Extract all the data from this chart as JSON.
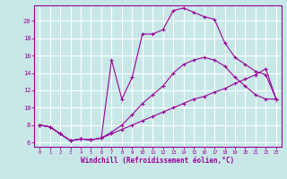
{
  "xlabel": "Windchill (Refroidissement éolien,°C)",
  "bg_color": "#c8e8e8",
  "grid_color": "#ffffff",
  "line_color": "#990099",
  "xlim": [
    -0.5,
    23.5
  ],
  "ylim": [
    5.5,
    21.8
  ],
  "yticks": [
    6,
    8,
    10,
    12,
    14,
    16,
    18,
    20
  ],
  "xticks": [
    0,
    1,
    2,
    3,
    4,
    5,
    6,
    7,
    8,
    9,
    10,
    11,
    12,
    13,
    14,
    15,
    16,
    17,
    18,
    19,
    20,
    21,
    22,
    23
  ],
  "line1_x": [
    0,
    1,
    2,
    3,
    4,
    5,
    6,
    7,
    8,
    9,
    10,
    11,
    12,
    13,
    14,
    15,
    16,
    17,
    18,
    19,
    20,
    21,
    22,
    23
  ],
  "line1_y": [
    8.0,
    7.8,
    7.0,
    6.2,
    6.4,
    6.3,
    6.5,
    7.0,
    7.5,
    8.0,
    8.5,
    9.0,
    9.5,
    10.0,
    10.5,
    11.0,
    11.3,
    11.8,
    12.2,
    12.8,
    13.3,
    13.8,
    14.5,
    11.0
  ],
  "line2_x": [
    0,
    1,
    2,
    3,
    4,
    5,
    6,
    7,
    8,
    9,
    10,
    11,
    12,
    13,
    14,
    15,
    16,
    17,
    18,
    19,
    20,
    21,
    22,
    23
  ],
  "line2_y": [
    8.0,
    7.8,
    7.0,
    6.2,
    6.4,
    6.3,
    6.5,
    7.2,
    8.0,
    9.2,
    10.5,
    11.5,
    12.5,
    14.0,
    15.0,
    15.5,
    15.8,
    15.5,
    14.8,
    13.5,
    12.5,
    11.5,
    11.0,
    11.0
  ],
  "line3_x": [
    0,
    1,
    2,
    3,
    4,
    5,
    6,
    7,
    8,
    9,
    10,
    11,
    12,
    13,
    14,
    15,
    16,
    17,
    18,
    19,
    20,
    21,
    22,
    23
  ],
  "line3_y": [
    8.0,
    7.8,
    7.0,
    6.2,
    6.4,
    6.3,
    6.5,
    15.5,
    11.0,
    13.5,
    18.5,
    18.5,
    19.0,
    21.2,
    21.5,
    21.0,
    20.5,
    20.2,
    17.5,
    15.8,
    15.0,
    14.2,
    13.8,
    11.0
  ]
}
